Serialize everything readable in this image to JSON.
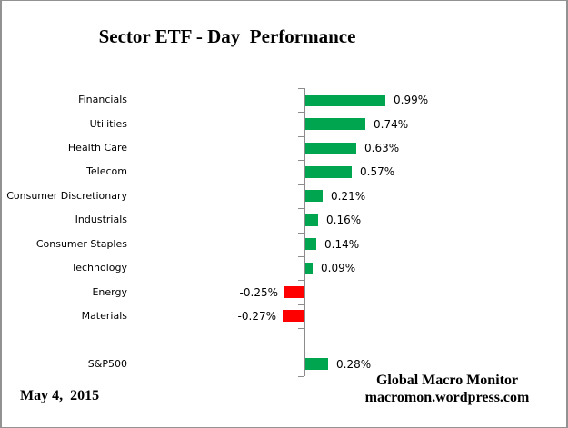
{
  "chart_data": {
    "type": "bar",
    "orientation": "horizontal",
    "title": "Sector ETF - Day  Performance",
    "categories": [
      "Financials",
      "Utilities",
      "Health Care",
      "Telecom",
      "Consumer Discretionary",
      "Industrials",
      "Consumer Staples",
      "Technology",
      "Energy",
      "Materials",
      "",
      "S&P500"
    ],
    "values": [
      0.99,
      0.74,
      0.63,
      0.57,
      0.21,
      0.16,
      0.14,
      0.09,
      -0.25,
      -0.27,
      null,
      0.28
    ],
    "display_values": [
      "0.99%",
      "0.74%",
      "0.63%",
      "0.57%",
      "0.21%",
      "0.16%",
      "0.14%",
      "0.09%",
      "-0.25%",
      "-0.27%",
      null,
      "0.28%"
    ],
    "unit": "%",
    "xlabel": "",
    "ylabel": "",
    "grid": "off",
    "legend": "none",
    "axis_style": "zero-line with outside ticks"
  },
  "colors": {
    "positive": "#00A550",
    "negative": "#FF0000",
    "axis": "#8C8C8C",
    "text": "#000000",
    "frame_border": "#929292"
  },
  "footer": {
    "date": "May 4,  2015",
    "brand_line1": "Global Macro Monitor",
    "brand_line2": "macromon.wordpress.com"
  }
}
